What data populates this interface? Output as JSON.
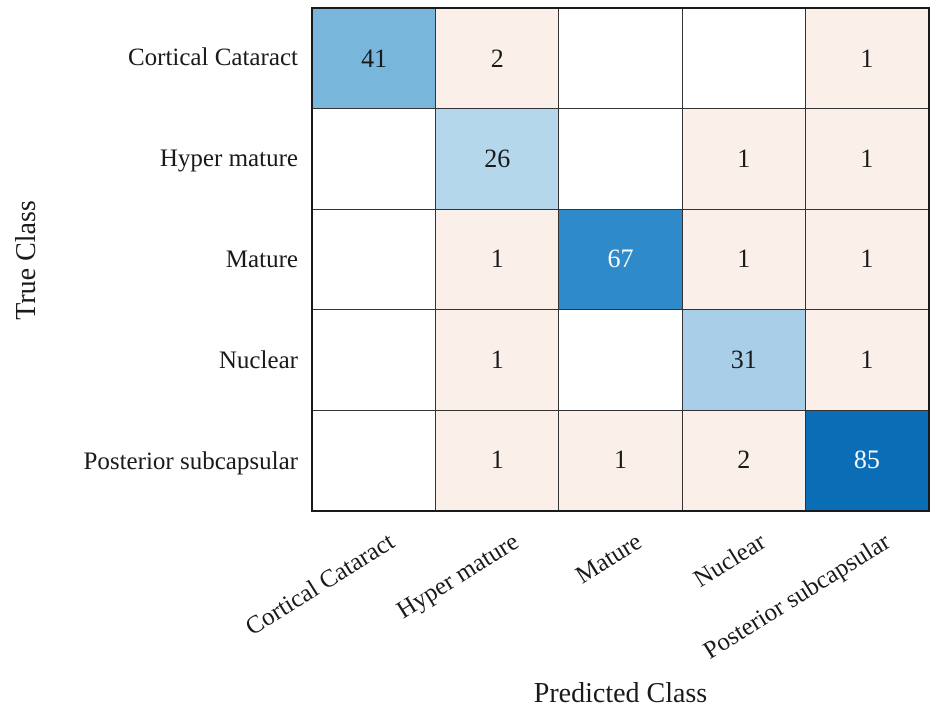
{
  "chart_data": {
    "type": "heatmap",
    "subtype": "confusion_matrix",
    "title": "",
    "xlabel": "Predicted Class",
    "ylabel": "True Class",
    "classes": [
      "Cortical Cataract",
      "Hyper mature",
      "Mature",
      "Nuclear",
      "Posterior subcapsular"
    ],
    "matrix": [
      [
        41,
        2,
        null,
        null,
        1
      ],
      [
        null,
        26,
        null,
        1,
        1
      ],
      [
        null,
        1,
        67,
        1,
        1
      ],
      [
        null,
        1,
        null,
        31,
        1
      ],
      [
        null,
        1,
        1,
        2,
        85
      ]
    ],
    "cell_fills": [
      [
        "#79b6dc",
        "#fbefe9",
        "#ffffff",
        "#ffffff",
        "#fbefe9"
      ],
      [
        "#ffffff",
        "#b5d7ec",
        "#ffffff",
        "#fbefe9",
        "#fbefe9"
      ],
      [
        "#ffffff",
        "#fbefe9",
        "#2f8ac9",
        "#fbefe9",
        "#fbefe9"
      ],
      [
        "#ffffff",
        "#fbefe9",
        "#ffffff",
        "#a9cfe8",
        "#fbefe9"
      ],
      [
        "#ffffff",
        "#fbefe9",
        "#fbefe9",
        "#fbefe9",
        "#0c6db7"
      ]
    ],
    "cell_text_colors": [
      [
        "#1a1a1a",
        "#1a1a1a",
        "#1a1a1a",
        "#1a1a1a",
        "#1a1a1a"
      ],
      [
        "#1a1a1a",
        "#1a1a1a",
        "#1a1a1a",
        "#1a1a1a",
        "#1a1a1a"
      ],
      [
        "#1a1a1a",
        "#1a1a1a",
        "#f4f9fc",
        "#1a1a1a",
        "#1a1a1a"
      ],
      [
        "#1a1a1a",
        "#1a1a1a",
        "#1a1a1a",
        "#1a1a1a",
        "#1a1a1a"
      ],
      [
        "#1a1a1a",
        "#1a1a1a",
        "#1a1a1a",
        "#1a1a1a",
        "#f4f9fc"
      ]
    ],
    "colors": {
      "diagonal_high": "#0c6db7",
      "diagonal_low": "#b5d7ec",
      "off_diagonal_tint": "#fbefe9",
      "empty_cell": "#ffffff",
      "grid_line": "#333333",
      "axis_border": "#1a1a1a",
      "text_dark": "#1a1a1a",
      "text_light": "#f4f9fc"
    },
    "layout": {
      "legend": "none",
      "grid": "on",
      "x_tick_rotation_deg": -32,
      "rows": 5,
      "cols": 5
    }
  }
}
